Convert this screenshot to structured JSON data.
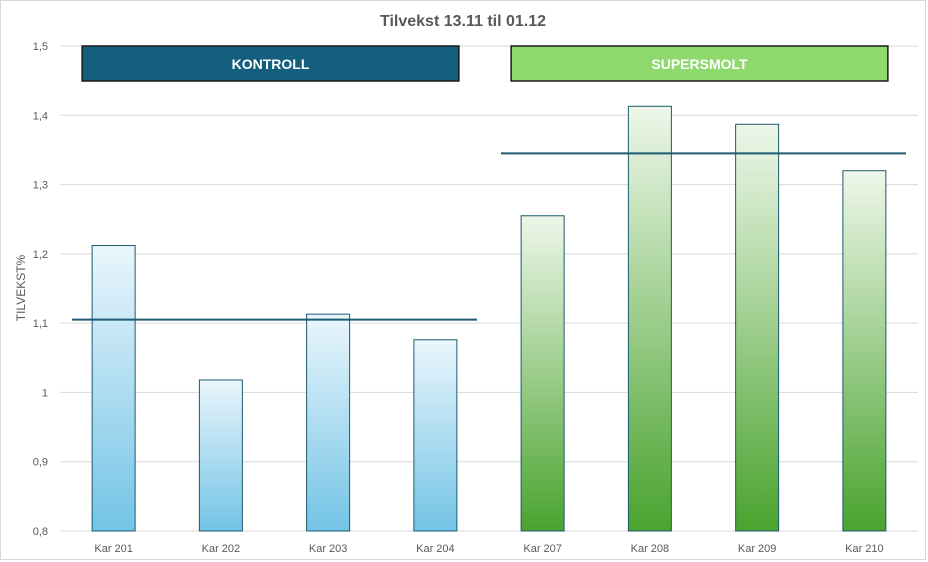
{
  "chart_data": {
    "type": "bar",
    "title": "Tilvekst 13.11 til 01.12",
    "ylabel": "TILVEKST%",
    "xlabel": "",
    "ylim": [
      0.8,
      1.5
    ],
    "yticks": [
      "0,8",
      "0,9",
      "1",
      "1,1",
      "1,2",
      "1,3",
      "1,4",
      "1,5"
    ],
    "grid": true,
    "categories": [
      "Kar 201",
      "Kar 202",
      "Kar 203",
      "Kar 204",
      "Kar 207",
      "Kar 208",
      "Kar 209",
      "Kar 210"
    ],
    "values": [
      1.212,
      1.018,
      1.113,
      1.076,
      1.255,
      1.413,
      1.387,
      1.32
    ],
    "groups": [
      {
        "label": "KONTROLL",
        "start": 0,
        "end": 3,
        "average": 1.105,
        "color": "#145f7e",
        "bar_top": "#eaf6fc",
        "bar_bottom": "#73c4e6"
      },
      {
        "label": "SUPERSMOLT",
        "start": 4,
        "end": 7,
        "average": 1.345,
        "color": "#8fd86e",
        "bar_top": "#eef7ea",
        "bar_bottom": "#4aa32e"
      }
    ],
    "bar_edge_color": "#1c5a6e",
    "average_line_color": "#1f5a73"
  }
}
